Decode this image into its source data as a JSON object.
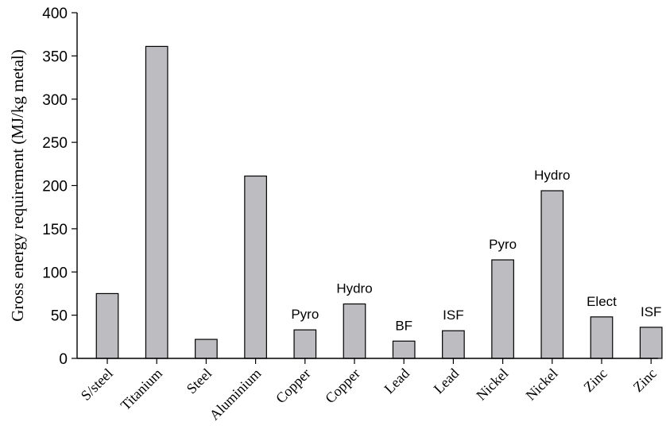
{
  "chart_data": {
    "type": "bar",
    "title": "",
    "xlabel": "",
    "ylabel": "Gross energy requirement (MJ/kg metal)",
    "ylim": [
      0,
      400
    ],
    "yticks": [
      0,
      50,
      100,
      150,
      200,
      250,
      300,
      350,
      400
    ],
    "grid": false,
    "legend": "none",
    "bar_color": "#bdbdc1",
    "categories": [
      "S/steel",
      "Titanium",
      "Steel",
      "Aluminium",
      "Copper",
      "Copper",
      "Lead",
      "Lead",
      "Nickel",
      "Nickel",
      "Zinc",
      "Zinc"
    ],
    "values": [
      75,
      361,
      22,
      211,
      33,
      63,
      20,
      32,
      114,
      194,
      48,
      36
    ],
    "bar_labels": [
      "",
      "",
      "",
      "",
      "Pyro",
      "Hydro",
      "BF",
      "ISF",
      "Pyro",
      "Hydro",
      "Elect",
      "ISF"
    ]
  }
}
